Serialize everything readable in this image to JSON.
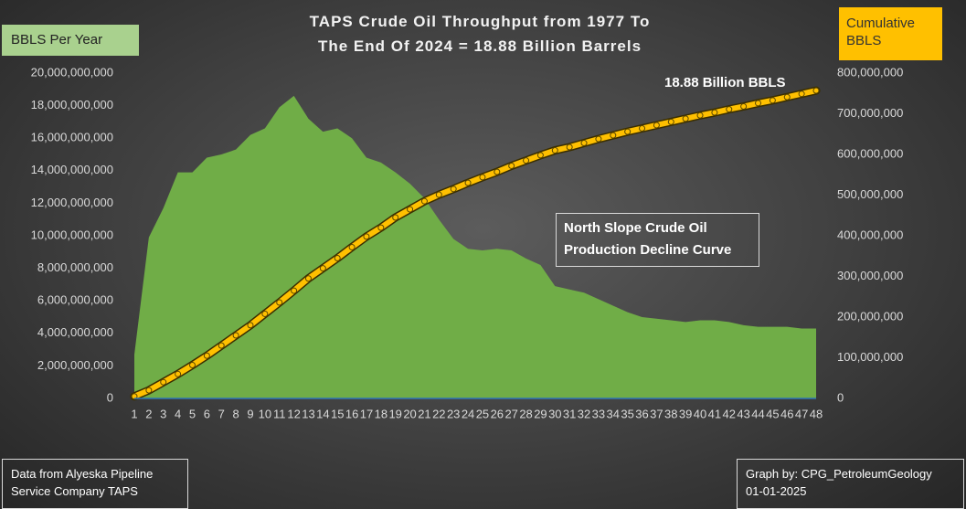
{
  "chart_data": {
    "type": "area_line",
    "title_lines": [
      "TAPS Crude Oil Throughput from 1977 To",
      "The End Of 2024 = 18.88 Billion Barrels"
    ],
    "y_axis_label": "BBLS Per Year",
    "y2_axis_label_lines": [
      "Cumulative",
      "BBLS"
    ],
    "annotation": "18.88 Billion BBLS",
    "annotation_box_lines": [
      "North Slope Crude Oil",
      "Production Decline Curve"
    ],
    "source_lines": [
      "Data from Alyeska Pipeline",
      "Service Company TAPS"
    ],
    "credit_lines": [
      "Graph by: CPG_PetroleumGeology",
      "01-01-2025"
    ],
    "categories": [
      1,
      2,
      3,
      4,
      5,
      6,
      7,
      8,
      9,
      10,
      11,
      12,
      13,
      14,
      15,
      16,
      17,
      18,
      19,
      20,
      21,
      22,
      23,
      24,
      25,
      26,
      27,
      28,
      29,
      30,
      31,
      32,
      33,
      34,
      35,
      36,
      37,
      38,
      39,
      40,
      41,
      42,
      43,
      44,
      45,
      46,
      47,
      48
    ],
    "series": [
      {
        "name": "BBLS Per Year",
        "color": "#70ad47",
        "axis": "y",
        "values": [
          2700000000,
          9900000000,
          11700000000,
          13900000000,
          13900000000,
          14800000000,
          15000000000,
          15300000000,
          16200000000,
          16600000000,
          17900000000,
          18600000000,
          17200000000,
          16400000000,
          16600000000,
          16000000000,
          14800000000,
          14500000000,
          13900000000,
          13200000000,
          12300000000,
          11000000000,
          9800000000,
          9200000000,
          9100000000,
          9200000000,
          9100000000,
          8600000000,
          8200000000,
          6900000000,
          6700000000,
          6500000000,
          6100000000,
          5700000000,
          5300000000,
          5000000000,
          4900000000,
          4800000000,
          4700000000,
          4800000000,
          4800000000,
          4700000000,
          4500000000,
          4400000000,
          4400000000,
          4400000000,
          4300000000,
          4300000000
        ]
      },
      {
        "name": "Cumulative BBLS",
        "color": "#ffc000",
        "axis": "y2",
        "values": [
          5000000,
          20000000,
          40000000,
          60000000,
          82000000,
          105000000,
          130000000,
          155000000,
          180000000,
          208000000,
          236000000,
          265000000,
          295000000,
          320000000,
          345000000,
          372000000,
          398000000,
          420000000,
          445000000,
          465000000,
          485000000,
          501000000,
          515000000,
          530000000,
          544000000,
          557000000,
          572000000,
          585000000,
          598000000,
          610000000,
          618000000,
          628000000,
          638000000,
          647000000,
          656000000,
          664000000,
          672000000,
          680000000,
          688000000,
          696000000,
          703000000,
          711000000,
          718000000,
          726000000,
          733000000,
          741000000,
          749000000,
          757000000
        ]
      }
    ],
    "ylim": [
      0,
      20000000000
    ],
    "yticks": [
      0,
      {
        "value": 2000000000,
        "label": "2,000,000,000"
      },
      {
        "value": 4000000000,
        "label": "4,000,000,000"
      },
      {
        "value": 6000000000,
        "label": "6,000,000,000"
      },
      {
        "value": 8000000000,
        "label": "8,000,000,000"
      },
      {
        "value": 10000000000,
        "label": "10,000,000,000"
      },
      {
        "value": 12000000000,
        "label": "12,000,000,000"
      },
      {
        "value": 14000000000,
        "label": "14,000,000,000"
      },
      {
        "value": 16000000000,
        "label": "16,000,000,000"
      },
      {
        "value": 18000000000,
        "label": "18,000,000,000"
      },
      {
        "value": 20000000000,
        "label": "20,000,000,000"
      }
    ],
    "y2lim": [
      0,
      800000000
    ],
    "y2ticks": [
      0,
      {
        "value": 100000000,
        "label": "100,000,000"
      },
      {
        "value": 200000000,
        "label": "200,000,000"
      },
      {
        "value": 300000000,
        "label": "300,000,000"
      },
      {
        "value": 400000000,
        "label": "400,000,000"
      },
      {
        "value": 500000000,
        "label": "500,000,000"
      },
      {
        "value": 600000000,
        "label": "600,000,000"
      },
      {
        "value": 700000000,
        "label": "700,000,000"
      },
      {
        "value": 800000000,
        "label": "800,000,000"
      }
    ],
    "grid": false
  }
}
